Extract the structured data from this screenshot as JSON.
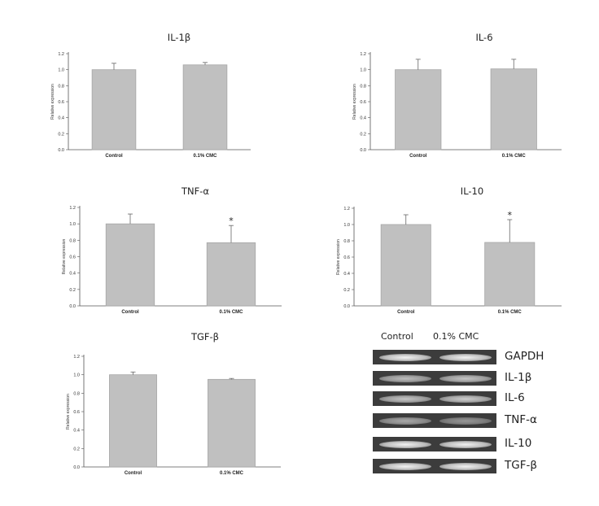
{
  "chart_data": [
    {
      "type": "bar",
      "title": "IL-1β",
      "ylabel": "Relative expression",
      "categories": [
        "Control",
        "0.1% CMC"
      ],
      "values": [
        1.0,
        1.06
      ],
      "errors": [
        0.08,
        0.03
      ],
      "significance": [
        "",
        ""
      ],
      "ylim": [
        0.0,
        1.2
      ],
      "yticks": [
        "0.0",
        "0.2",
        "0.4",
        "0.6",
        "0.8",
        "1.0",
        "1.2"
      ],
      "grid": false
    },
    {
      "type": "bar",
      "title": "IL-6",
      "ylabel": "Relative expression",
      "categories": [
        "Control",
        "0.1% CMC"
      ],
      "values": [
        1.0,
        1.01
      ],
      "errors": [
        0.13,
        0.12
      ],
      "significance": [
        "",
        ""
      ],
      "ylim": [
        0.0,
        1.2
      ],
      "yticks": [
        "0.0",
        "0.2",
        "0.4",
        "0.6",
        "0.8",
        "1.0",
        "1.2"
      ],
      "grid": false
    },
    {
      "type": "bar",
      "title": "TNF-α",
      "ylabel": "Relative expression",
      "categories": [
        "Control",
        "0.1% CMC"
      ],
      "values": [
        1.0,
        0.77
      ],
      "errors": [
        0.12,
        0.21
      ],
      "significance": [
        "",
        "*"
      ],
      "ylim": [
        0.0,
        1.2
      ],
      "yticks": [
        "0.0",
        "0.2",
        "0.4",
        "0.6",
        "0.8",
        "1.0",
        "1.2"
      ],
      "grid": false
    },
    {
      "type": "bar",
      "title": "IL-10",
      "ylabel": "Relative expression",
      "categories": [
        "Control",
        "0.1% CMC"
      ],
      "values": [
        1.0,
        0.78
      ],
      "errors": [
        0.12,
        0.28
      ],
      "significance": [
        "",
        "*"
      ],
      "ylim": [
        0.0,
        1.2
      ],
      "yticks": [
        "0.0",
        "0.2",
        "0.4",
        "0.6",
        "0.8",
        "1.0",
        "1.2"
      ],
      "grid": false
    },
    {
      "type": "bar",
      "title": "TGF-β",
      "ylabel": "Relative expression",
      "categories": [
        "Control",
        "0.1% CMC"
      ],
      "values": [
        1.0,
        0.95
      ],
      "errors": [
        0.03,
        0.01
      ],
      "significance": [
        "",
        ""
      ],
      "ylim": [
        0.0,
        1.2
      ],
      "yticks": [
        "0.0",
        "0.2",
        "0.4",
        "0.6",
        "0.8",
        "1.0",
        "1.2"
      ],
      "grid": false
    }
  ],
  "colors": {
    "bar": "#c0c0c0",
    "bar_edge": "#a6a6a6",
    "gel_bg": "#3c3c3c"
  },
  "gel": {
    "lane_labels": [
      "Control",
      "0.1% CMC"
    ],
    "genes": [
      "GAPDH",
      "IL-1β",
      "IL-6",
      "TNF-α",
      "IL-10",
      "TGF-β"
    ]
  }
}
